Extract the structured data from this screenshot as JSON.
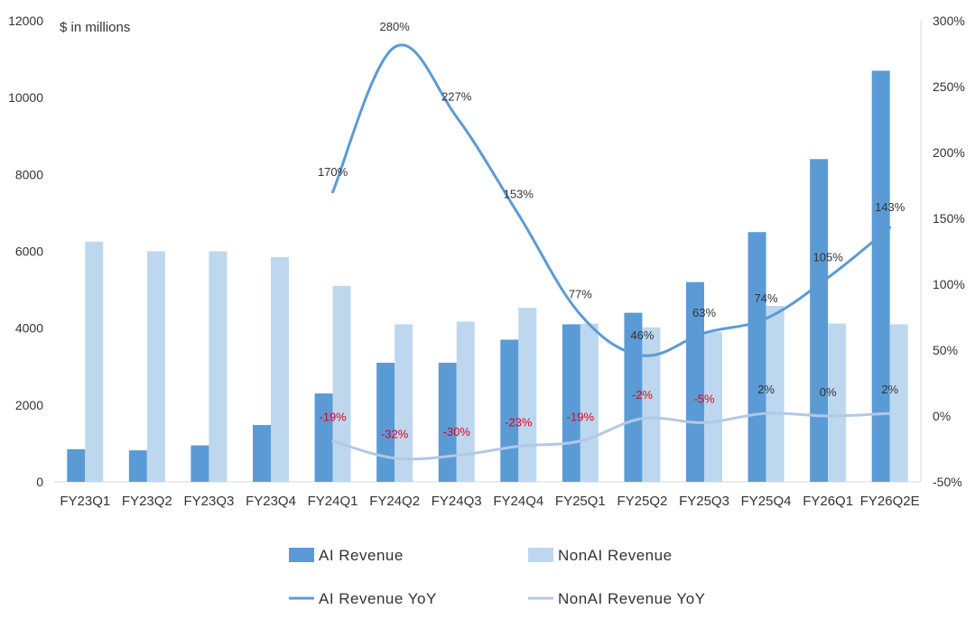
{
  "chart_data": {
    "type": "bar",
    "unit_label": "$ in millions",
    "categories": [
      "FY23Q1",
      "FY23Q2",
      "FY23Q3",
      "FY23Q4",
      "FY24Q1",
      "FY24Q2",
      "FY24Q3",
      "FY24Q4",
      "FY25Q1",
      "FY25Q2",
      "FY25Q3",
      "FY25Q4",
      "FY26Q1",
      "FY26Q2E"
    ],
    "y_left": {
      "min": 0,
      "max": 12000,
      "ticks": [
        "0",
        "2000",
        "4000",
        "6000",
        "8000",
        "10000",
        "12000"
      ],
      "tick_values": [
        0,
        2000,
        4000,
        6000,
        8000,
        10000,
        12000
      ]
    },
    "y_right": {
      "min": -50,
      "max": 300,
      "ticks": [
        "-50%",
        "0%",
        "50%",
        "100%",
        "150%",
        "200%",
        "250%",
        "300%"
      ],
      "tick_values": [
        -50,
        0,
        50,
        100,
        150,
        200,
        250,
        300
      ]
    },
    "series": [
      {
        "name": "AI Revenue",
        "kind": "bar",
        "axis": "left",
        "color": "#5b9bd5",
        "values": [
          850,
          820,
          950,
          1480,
          2300,
          3100,
          3100,
          3700,
          4100,
          4400,
          5200,
          6500,
          8400,
          10700
        ]
      },
      {
        "name": "NonAI Revenue",
        "kind": "bar",
        "axis": "left",
        "color": "#bdd7ee",
        "values": [
          6250,
          6000,
          6000,
          5850,
          5100,
          4100,
          4170,
          4530,
          4120,
          4020,
          3900,
          4580,
          4120,
          4100
        ]
      },
      {
        "name": "AI Revenue YoY",
        "kind": "line",
        "axis": "right",
        "color": "#5b9bd5",
        "values": [
          null,
          null,
          null,
          null,
          170,
          280,
          227,
          153,
          77,
          46,
          63,
          74,
          105,
          143
        ],
        "labels": [
          null,
          null,
          null,
          null,
          "170%",
          "280%",
          "227%",
          "153%",
          "77%",
          "46%",
          "63%",
          "74%",
          "105%",
          "143%"
        ]
      },
      {
        "name": "NonAI Revenue YoY",
        "kind": "line",
        "axis": "right",
        "color": "#b4c7e7",
        "values": [
          null,
          null,
          null,
          null,
          -19,
          -32,
          -30,
          -23,
          -19,
          -2,
          -5,
          2,
          0,
          2
        ],
        "labels": [
          null,
          null,
          null,
          null,
          "-19%",
          "-32%",
          "-30%",
          "-23%",
          "-19%",
          "-2%",
          "-5%",
          "2%",
          "0%",
          "2%"
        ]
      }
    ],
    "legend": [
      "AI Revenue",
      "NonAI Revenue",
      "AI Revenue YoY",
      "NonAI Revenue YoY"
    ],
    "legend_position": "bottom",
    "grid": false
  }
}
